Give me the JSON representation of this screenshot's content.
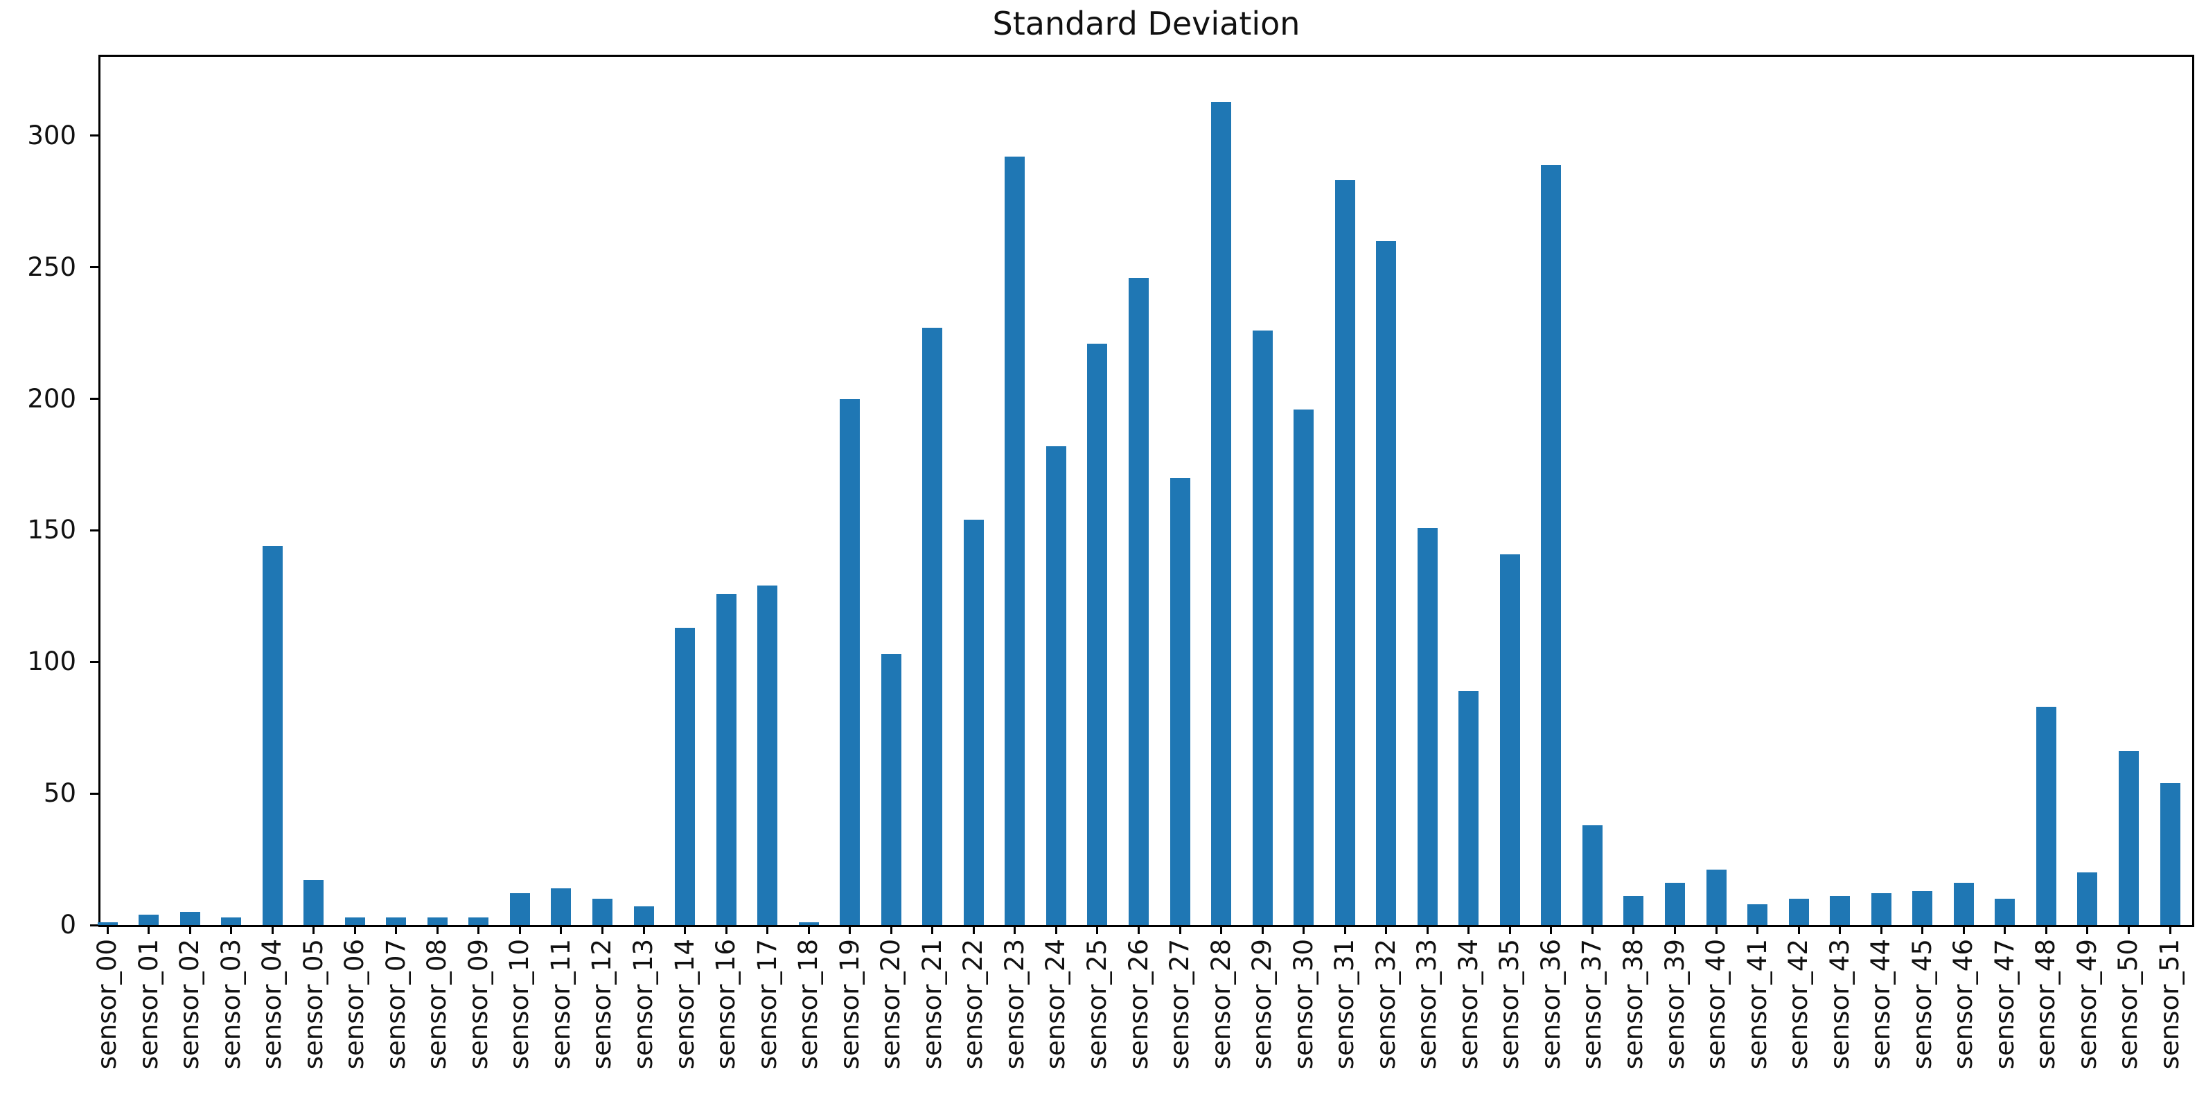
{
  "figure": {
    "background": "#ffffff",
    "text_color": "#111111",
    "spine_color": "#000000"
  },
  "chart_data": {
    "type": "bar",
    "title": "Standard Deviation",
    "xlabel": "",
    "ylabel": "",
    "categories": [
      "sensor_00",
      "sensor_01",
      "sensor_02",
      "sensor_03",
      "sensor_04",
      "sensor_05",
      "sensor_06",
      "sensor_07",
      "sensor_08",
      "sensor_09",
      "sensor_10",
      "sensor_11",
      "sensor_12",
      "sensor_13",
      "sensor_14",
      "sensor_16",
      "sensor_17",
      "sensor_18",
      "sensor_19",
      "sensor_20",
      "sensor_21",
      "sensor_22",
      "sensor_23",
      "sensor_24",
      "sensor_25",
      "sensor_26",
      "sensor_27",
      "sensor_28",
      "sensor_29",
      "sensor_30",
      "sensor_31",
      "sensor_32",
      "sensor_33",
      "sensor_34",
      "sensor_35",
      "sensor_36",
      "sensor_37",
      "sensor_38",
      "sensor_39",
      "sensor_40",
      "sensor_41",
      "sensor_42",
      "sensor_43",
      "sensor_44",
      "sensor_45",
      "sensor_46",
      "sensor_47",
      "sensor_48",
      "sensor_49",
      "sensor_50",
      "sensor_51"
    ],
    "values": [
      1,
      4,
      5,
      3,
      144,
      17,
      3,
      3,
      3,
      3,
      12,
      14,
      10,
      7,
      113,
      126,
      129,
      1,
      200,
      103,
      227,
      154,
      292,
      182,
      221,
      246,
      170,
      313,
      226,
      196,
      283,
      260,
      151,
      89,
      141,
      289,
      38,
      11,
      16,
      21,
      8,
      10,
      11,
      12,
      13,
      16,
      10,
      83,
      20,
      66,
      54
    ],
    "yticks": [
      0,
      50,
      100,
      150,
      200,
      250,
      300
    ],
    "ylim": [
      0,
      330
    ],
    "grid": false,
    "legend": null,
    "bar_color": "#1f77b4",
    "x_tick_rotation": 90
  }
}
